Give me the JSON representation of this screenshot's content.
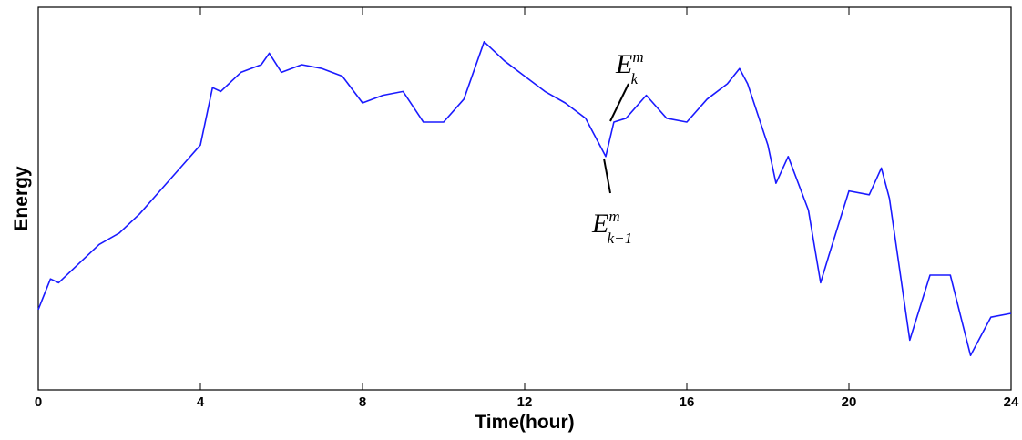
{
  "chart_data": {
    "type": "line",
    "xlabel": "Time(hour)",
    "ylabel": "Energy",
    "x": [
      0,
      0.3,
      0.5,
      1,
      1.5,
      2,
      2.5,
      3,
      3.5,
      4,
      4.3,
      4.5,
      5,
      5.5,
      5.7,
      6,
      6.5,
      7,
      7.5,
      8,
      8.5,
      9,
      9.5,
      10,
      10.5,
      11,
      11.5,
      12,
      12.5,
      13,
      13.5,
      14,
      14.2,
      14.5,
      15,
      15.5,
      16,
      16.5,
      17,
      17.3,
      17.5,
      18,
      18.2,
      18.5,
      19,
      19.3,
      19.5,
      20,
      20.5,
      20.8,
      21,
      21.5,
      22,
      22.5,
      23,
      23.5,
      24
    ],
    "values": [
      21,
      29,
      28,
      33,
      38,
      41,
      46,
      52,
      58,
      64,
      79,
      78,
      83,
      85,
      88,
      83,
      85,
      84,
      82,
      75,
      77,
      78,
      70,
      70,
      76,
      91,
      86,
      82,
      78,
      75,
      71,
      61,
      70,
      71,
      77,
      71,
      70,
      76,
      80,
      84,
      80,
      64,
      54,
      61,
      47,
      28,
      35,
      52,
      51,
      58,
      50,
      13,
      30,
      30,
      9,
      19,
      20
    ],
    "color": "#1a1aff",
    "xlim": [
      0,
      24
    ],
    "xticks": [
      0,
      4,
      8,
      12,
      16,
      20,
      24
    ],
    "ylim": [
      0,
      100
    ],
    "annotations": [
      {
        "base": "E",
        "sup": "m",
        "sub": "k"
      },
      {
        "base": "E",
        "sup": "m",
        "sub": "k−1"
      }
    ]
  }
}
